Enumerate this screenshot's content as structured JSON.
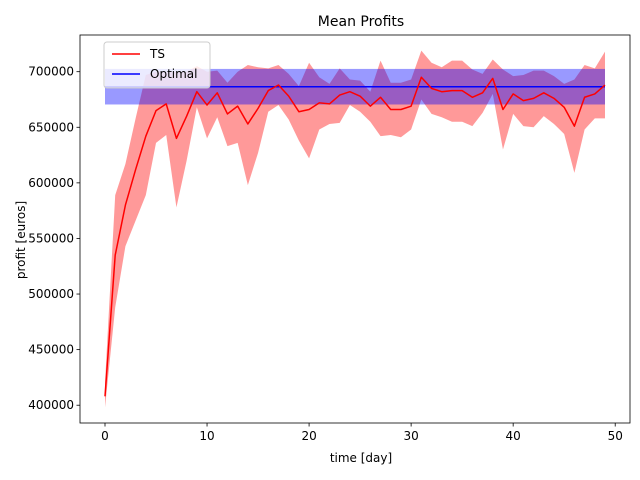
{
  "chart_data": {
    "type": "line",
    "title": "Mean Profits",
    "xlabel": "time [day]",
    "ylabel": "profit [euros]",
    "xlim": [
      -2.45,
      51.45
    ],
    "ylim": [
      384000,
      733000
    ],
    "x_ticks": [
      0,
      10,
      20,
      30,
      40,
      50
    ],
    "y_ticks": [
      400000,
      450000,
      500000,
      550000,
      600000,
      650000,
      700000
    ],
    "grid": false,
    "legend": {
      "position": "top-left",
      "entries": [
        "TS",
        "Optimal"
      ]
    },
    "x": [
      0,
      1,
      2,
      3,
      4,
      5,
      6,
      7,
      8,
      9,
      10,
      11,
      12,
      13,
      14,
      15,
      16,
      17,
      18,
      19,
      20,
      21,
      22,
      23,
      24,
      25,
      26,
      27,
      28,
      29,
      30,
      31,
      32,
      33,
      34,
      35,
      36,
      37,
      38,
      39,
      40,
      41,
      42,
      43,
      44,
      45,
      46,
      47,
      48,
      49
    ],
    "series": [
      {
        "name": "TS",
        "color": "#ff0000",
        "values": [
          408000,
          535000,
          580000,
          612000,
          642000,
          665000,
          671000,
          640000,
          660000,
          682000,
          670000,
          681000,
          662000,
          669000,
          653000,
          667000,
          683000,
          688000,
          678000,
          664000,
          666000,
          672000,
          671000,
          679000,
          682000,
          678000,
          669000,
          677000,
          666000,
          666000,
          669000,
          695000,
          685000,
          682000,
          683000,
          683000,
          677000,
          681000,
          694000,
          666000,
          680000,
          674000,
          676000,
          681000,
          676000,
          668000,
          651000,
          677000,
          680000,
          688000
        ],
        "band_lower": [
          398000,
          488000,
          543000,
          566000,
          589000,
          636000,
          643000,
          578000,
          620000,
          668000,
          640000,
          659000,
          633000,
          636000,
          598000,
          627000,
          664000,
          670000,
          657000,
          638000,
          622000,
          648000,
          653000,
          654000,
          670000,
          664000,
          655000,
          642000,
          643000,
          641000,
          648000,
          675000,
          662000,
          659000,
          655000,
          655000,
          651000,
          663000,
          680000,
          630000,
          662000,
          651000,
          650000,
          660000,
          653000,
          644000,
          609000,
          648000,
          658000,
          658000
        ],
        "band_upper": [
          420000,
          589000,
          617000,
          658000,
          697000,
          700000,
          700000,
          700000,
          700000,
          705000,
          700000,
          701000,
          690000,
          700000,
          706000,
          704000,
          703000,
          706000,
          698000,
          687000,
          708000,
          695000,
          689000,
          703000,
          693000,
          692000,
          682000,
          710000,
          690000,
          690000,
          693000,
          719000,
          708000,
          704000,
          710000,
          710000,
          702000,
          698000,
          711000,
          702000,
          696000,
          697000,
          701000,
          701000,
          696000,
          689000,
          693000,
          706000,
          703000,
          718000
        ]
      },
      {
        "name": "Optimal",
        "color": "#0000ff",
        "constant": 686500,
        "band_lower": 670500,
        "band_upper": 702500
      }
    ]
  }
}
